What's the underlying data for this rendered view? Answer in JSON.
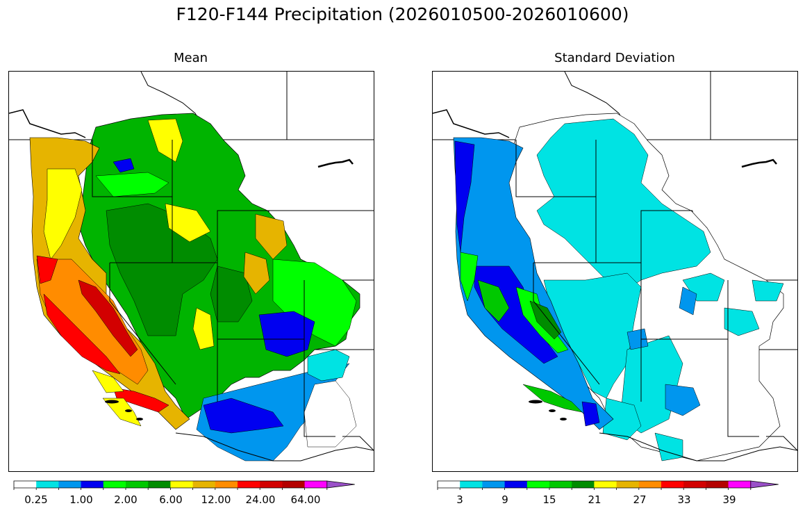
{
  "title": "F120-F144 Precipitation (2026010500-2026010600)",
  "panels": [
    {
      "title": "Mean",
      "colors": [
        "#ffffff",
        "#00e3e3",
        "#0096ee",
        "#0000f0",
        "#00ff00",
        "#00c800",
        "#008c00",
        "#ffff00",
        "#e6b400",
        "#ff8c00",
        "#ff0000",
        "#d20000",
        "#b40000",
        "#ff00ff",
        "#9a50c8"
      ],
      "tick_labels": [
        "0.25",
        "1.00",
        "2.00",
        "6.00",
        "12.00",
        "24.00",
        "64.00"
      ]
    },
    {
      "title": "Standard Deviation",
      "colors": [
        "#ffffff",
        "#00e3e3",
        "#0096ee",
        "#0000f0",
        "#00ff00",
        "#00c800",
        "#008c00",
        "#ffff00",
        "#e6b400",
        "#ff8c00",
        "#ff0000",
        "#d20000",
        "#b40000",
        "#ff00ff",
        "#9a50c8"
      ],
      "tick_labels": [
        "3",
        "9",
        "15",
        "21",
        "27",
        "33",
        "39"
      ]
    }
  ]
}
